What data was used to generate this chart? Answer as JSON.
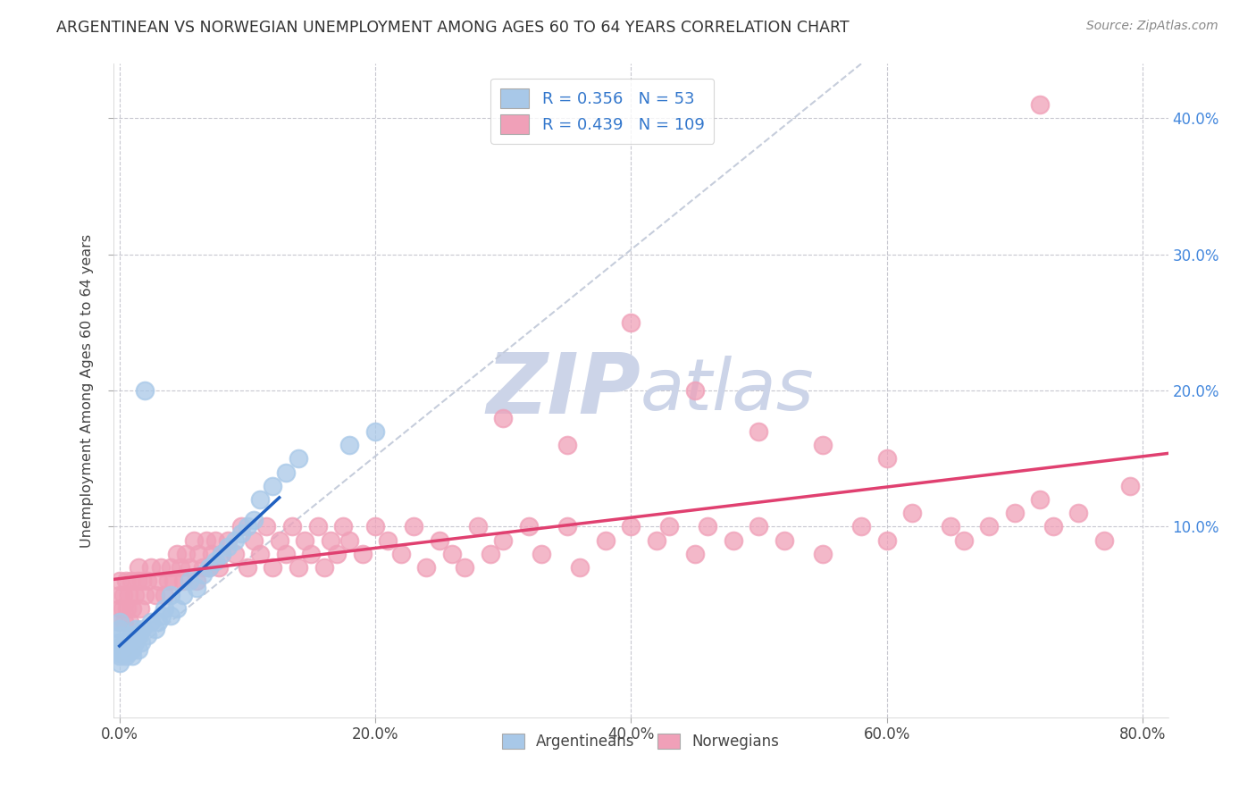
{
  "title": "ARGENTINEAN VS NORWEGIAN UNEMPLOYMENT AMONG AGES 60 TO 64 YEARS CORRELATION CHART",
  "source": "Source: ZipAtlas.com",
  "ylabel": "Unemployment Among Ages 60 to 64 years",
  "xlim": [
    -0.005,
    0.82
  ],
  "ylim": [
    -0.04,
    0.44
  ],
  "xtick_labels": [
    "0.0%",
    "20.0%",
    "40.0%",
    "60.0%",
    "80.0%"
  ],
  "xtick_vals": [
    0.0,
    0.2,
    0.4,
    0.6,
    0.8
  ],
  "ytick_labels": [
    "10.0%",
    "20.0%",
    "30.0%",
    "40.0%"
  ],
  "ytick_vals": [
    0.1,
    0.2,
    0.3,
    0.4
  ],
  "arg_R": 0.356,
  "arg_N": 53,
  "nor_R": 0.439,
  "nor_N": 109,
  "arg_color": "#a8c8e8",
  "nor_color": "#f0a0b8",
  "arg_line_color": "#2060c0",
  "nor_line_color": "#e04070",
  "ref_line_color": "#c0c8d8",
  "watermark_color": "#ccd4e8",
  "arg_scatter_x": [
    0.0,
    0.0,
    0.0,
    0.0,
    0.0,
    0.0,
    0.0,
    0.0,
    0.0,
    0.005,
    0.005,
    0.005,
    0.007,
    0.007,
    0.008,
    0.009,
    0.01,
    0.01,
    0.01,
    0.012,
    0.013,
    0.015,
    0.015,
    0.017,
    0.018,
    0.02,
    0.022,
    0.025,
    0.028,
    0.03,
    0.033,
    0.035,
    0.04,
    0.04,
    0.045,
    0.05,
    0.055,
    0.06,
    0.065,
    0.07,
    0.075,
    0.08,
    0.085,
    0.09,
    0.095,
    0.1,
    0.105,
    0.11,
    0.12,
    0.13,
    0.14,
    0.18,
    0.2
  ],
  "arg_scatter_y": [
    0.0,
    0.005,
    0.007,
    0.01,
    0.012,
    0.015,
    0.02,
    0.025,
    0.03,
    0.005,
    0.01,
    0.015,
    0.008,
    0.015,
    0.01,
    0.02,
    0.005,
    0.01,
    0.02,
    0.015,
    0.025,
    0.01,
    0.02,
    0.015,
    0.025,
    0.2,
    0.02,
    0.03,
    0.025,
    0.03,
    0.035,
    0.04,
    0.035,
    0.05,
    0.04,
    0.05,
    0.06,
    0.055,
    0.065,
    0.07,
    0.075,
    0.08,
    0.085,
    0.09,
    0.095,
    0.1,
    0.105,
    0.12,
    0.13,
    0.14,
    0.15,
    0.16,
    0.17
  ],
  "nor_scatter_x": [
    0.0,
    0.0,
    0.0,
    0.0,
    0.002,
    0.003,
    0.004,
    0.005,
    0.006,
    0.007,
    0.008,
    0.009,
    0.01,
    0.012,
    0.014,
    0.015,
    0.016,
    0.018,
    0.02,
    0.022,
    0.025,
    0.028,
    0.03,
    0.032,
    0.035,
    0.038,
    0.04,
    0.042,
    0.045,
    0.048,
    0.05,
    0.052,
    0.055,
    0.058,
    0.06,
    0.062,
    0.065,
    0.068,
    0.07,
    0.072,
    0.075,
    0.078,
    0.08,
    0.085,
    0.09,
    0.095,
    0.1,
    0.105,
    0.11,
    0.115,
    0.12,
    0.125,
    0.13,
    0.135,
    0.14,
    0.145,
    0.15,
    0.155,
    0.16,
    0.165,
    0.17,
    0.175,
    0.18,
    0.19,
    0.2,
    0.21,
    0.22,
    0.23,
    0.24,
    0.25,
    0.26,
    0.27,
    0.28,
    0.29,
    0.3,
    0.32,
    0.33,
    0.35,
    0.36,
    0.38,
    0.4,
    0.42,
    0.43,
    0.45,
    0.46,
    0.48,
    0.5,
    0.52,
    0.55,
    0.58,
    0.6,
    0.62,
    0.65,
    0.66,
    0.68,
    0.7,
    0.72,
    0.73,
    0.75,
    0.77,
    0.79,
    0.3,
    0.35,
    0.4,
    0.45,
    0.5,
    0.55,
    0.6,
    0.72
  ],
  "nor_scatter_y": [
    0.03,
    0.04,
    0.05,
    0.06,
    0.04,
    0.05,
    0.03,
    0.06,
    0.04,
    0.05,
    0.03,
    0.06,
    0.04,
    0.05,
    0.06,
    0.07,
    0.04,
    0.06,
    0.05,
    0.06,
    0.07,
    0.05,
    0.06,
    0.07,
    0.05,
    0.06,
    0.07,
    0.06,
    0.08,
    0.07,
    0.06,
    0.08,
    0.07,
    0.09,
    0.06,
    0.08,
    0.07,
    0.09,
    0.07,
    0.08,
    0.09,
    0.07,
    0.08,
    0.09,
    0.08,
    0.1,
    0.07,
    0.09,
    0.08,
    0.1,
    0.07,
    0.09,
    0.08,
    0.1,
    0.07,
    0.09,
    0.08,
    0.1,
    0.07,
    0.09,
    0.08,
    0.1,
    0.09,
    0.08,
    0.1,
    0.09,
    0.08,
    0.1,
    0.07,
    0.09,
    0.08,
    0.07,
    0.1,
    0.08,
    0.09,
    0.1,
    0.08,
    0.1,
    0.07,
    0.09,
    0.1,
    0.09,
    0.1,
    0.08,
    0.1,
    0.09,
    0.1,
    0.09,
    0.08,
    0.1,
    0.09,
    0.11,
    0.1,
    0.09,
    0.1,
    0.11,
    0.12,
    0.1,
    0.11,
    0.09,
    0.13,
    0.18,
    0.16,
    0.25,
    0.2,
    0.17,
    0.16,
    0.15,
    0.41
  ]
}
